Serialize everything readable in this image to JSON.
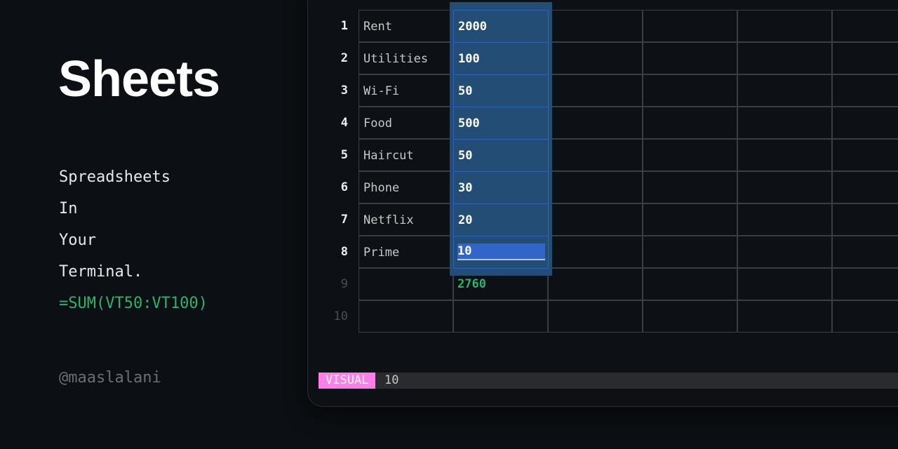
{
  "promo": {
    "title": "Sheets",
    "taglines": [
      "Spreadsheets",
      "In",
      "Your",
      "Terminal."
    ],
    "formula": "=SUM(VT50:VT100)",
    "handle": "@maaslalani"
  },
  "sheet": {
    "rows": [
      {
        "num": "1",
        "label": "Rent",
        "value": "2000"
      },
      {
        "num": "2",
        "label": "Utilities",
        "value": "100"
      },
      {
        "num": "3",
        "label": "Wi-Fi",
        "value": "50"
      },
      {
        "num": "4",
        "label": "Food",
        "value": "500"
      },
      {
        "num": "5",
        "label": "Haircut",
        "value": "50"
      },
      {
        "num": "6",
        "label": "Phone",
        "value": "30"
      },
      {
        "num": "7",
        "label": "Netflix",
        "value": "20"
      },
      {
        "num": "8",
        "label": "Prime",
        "value": "10"
      },
      {
        "num": "9",
        "label": "",
        "value": "2760"
      },
      {
        "num": "10",
        "label": "",
        "value": ""
      }
    ]
  },
  "statusbar": {
    "mode": "VISUAL",
    "value": "10"
  },
  "colors": {
    "accent": "#2fb36a",
    "selection": "#234d75",
    "mode": "#ff7ee8"
  }
}
